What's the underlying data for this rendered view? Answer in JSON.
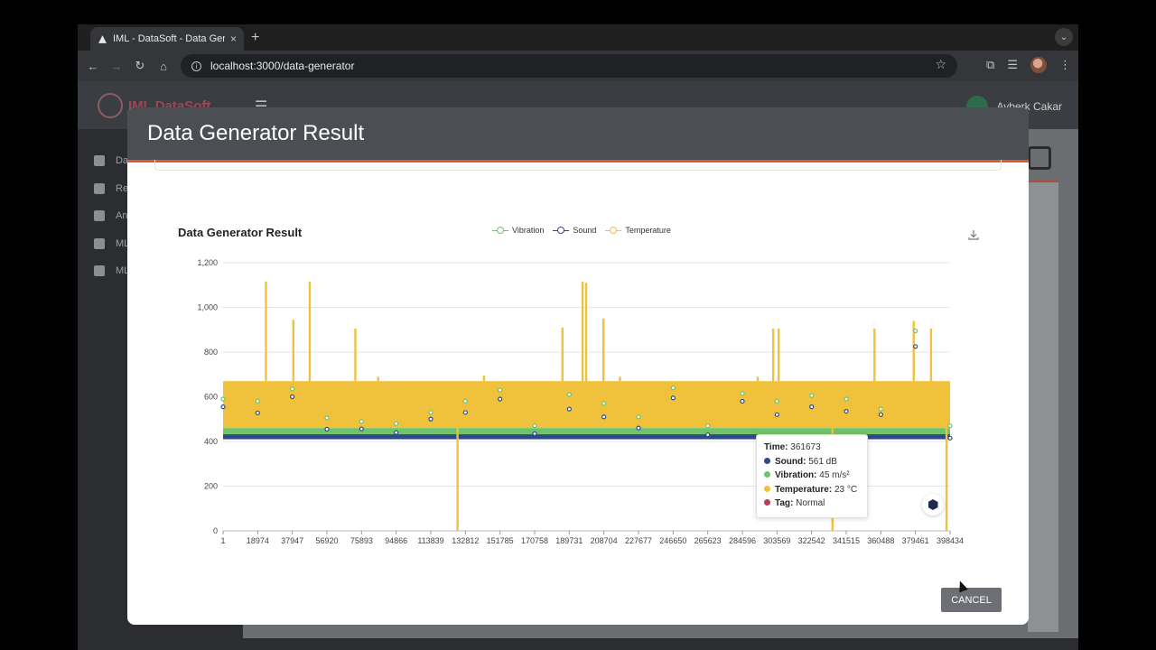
{
  "browser": {
    "tab_title": "IML - DataSoft - Data Generator",
    "tab_close": "×",
    "new_tab": "+",
    "tab_menu": "⌄",
    "url": "localhost:3000/data-generator",
    "back": "←",
    "forward": "→",
    "reload": "↻",
    "home": "⌂",
    "star": "☆",
    "extensions": "⧉",
    "media": "☰",
    "menu": "⋮"
  },
  "app": {
    "logo_text": "IML DataSoft",
    "hamburger": "☰",
    "user_name": "Ayberk Cakar",
    "sidebar": [
      {
        "label": "Da",
        "icon": "chip-icon"
      },
      {
        "label": "Re",
        "icon": "database-icon"
      },
      {
        "label": "An",
        "icon": "bug-icon"
      },
      {
        "label": "ML",
        "icon": "rocket-icon"
      },
      {
        "label": "ML",
        "icon": "check-icon"
      }
    ]
  },
  "modal": {
    "title": "Data Generator Result",
    "cancel_label": "CANCEL"
  },
  "chart_data": {
    "type": "line",
    "title": "Data Generator Result",
    "legend_position": "top-center",
    "legend": [
      {
        "name": "Vibration",
        "color": "#6fc36b"
      },
      {
        "name": "Sound",
        "color": "#2f4a8a"
      },
      {
        "name": "Temperature",
        "color": "#f0c23b"
      }
    ],
    "ylim": [
      0,
      1200
    ],
    "yticks": [
      "0",
      "200",
      "400",
      "600",
      "800",
      "1,000",
      "1,200"
    ],
    "yticks_values": [
      0,
      200,
      400,
      600,
      800,
      1000,
      1200
    ],
    "xlim": [
      1,
      398434
    ],
    "xticks": [
      "1",
      "18974",
      "37947",
      "56920",
      "75893",
      "94866",
      "113839",
      "132812",
      "151785",
      "170758",
      "189731",
      "208704",
      "227677",
      "246650",
      "265623",
      "284596",
      "303569",
      "322542",
      "341515",
      "360488",
      "379461",
      "398434"
    ],
    "grid": true,
    "series": [
      {
        "name": "Sound",
        "color": "#2f4a8a",
        "band": [
          410,
          432
        ],
        "points": [
          [
            1,
            555
          ],
          [
            18974,
            528
          ],
          [
            37947,
            600
          ],
          [
            56920,
            455
          ],
          [
            75893,
            456
          ],
          [
            94866,
            440
          ],
          [
            113839,
            500
          ],
          [
            132812,
            530
          ],
          [
            151785,
            590
          ],
          [
            170758,
            435
          ],
          [
            189731,
            545
          ],
          [
            208704,
            510
          ],
          [
            227677,
            460
          ],
          [
            246650,
            595
          ],
          [
            265623,
            430
          ],
          [
            284596,
            580
          ],
          [
            303569,
            520
          ],
          [
            322542,
            555
          ],
          [
            341515,
            535
          ],
          [
            360488,
            520
          ],
          [
            379461,
            825
          ],
          [
            398434,
            415
          ]
        ]
      },
      {
        "name": "Vibration",
        "color": "#6fc36b",
        "band": [
          430,
          460
        ],
        "points": [
          [
            1,
            590
          ],
          [
            18974,
            580
          ],
          [
            37947,
            635
          ],
          [
            56920,
            505
          ],
          [
            75893,
            490
          ],
          [
            94866,
            480
          ],
          [
            113839,
            530
          ],
          [
            132812,
            580
          ],
          [
            151785,
            630
          ],
          [
            170758,
            470
          ],
          [
            189731,
            610
          ],
          [
            208704,
            570
          ],
          [
            227677,
            510
          ],
          [
            246650,
            640
          ],
          [
            265623,
            470
          ],
          [
            284596,
            615
          ],
          [
            303569,
            580
          ],
          [
            322542,
            605
          ],
          [
            341515,
            590
          ],
          [
            360488,
            545
          ],
          [
            379461,
            895
          ],
          [
            398434,
            470
          ]
        ]
      },
      {
        "name": "Temperature",
        "color": "#f0c23b",
        "band": [
          460,
          670
        ],
        "spikes": [
          [
            23500,
            1115
          ],
          [
            38500,
            945
          ],
          [
            47500,
            1115
          ],
          [
            72500,
            905
          ],
          [
            85000,
            690
          ],
          [
            128500,
            0
          ],
          [
            143000,
            695
          ],
          [
            186000,
            910
          ],
          [
            197000,
            1115
          ],
          [
            199000,
            1110
          ],
          [
            208500,
            950
          ],
          [
            217500,
            690
          ],
          [
            293000,
            690
          ],
          [
            301500,
            905
          ],
          [
            304500,
            905
          ],
          [
            334000,
            0
          ],
          [
            357000,
            905
          ],
          [
            378500,
            940
          ],
          [
            388000,
            905
          ],
          [
            396500,
            0
          ]
        ]
      }
    ]
  },
  "tooltip": {
    "time_label": "Time:",
    "time_value": "361673",
    "rows": [
      {
        "label": "Sound:",
        "value": "561 dB",
        "color": "#2f4a8a"
      },
      {
        "label": "Vibration:",
        "value": "45 m/s²",
        "color": "#6fc36b"
      },
      {
        "label": "Temperature:",
        "value": "23 °C",
        "color": "#f0c23b"
      },
      {
        "label": "Tag:",
        "value": "Normal",
        "color": "#c0395a"
      }
    ]
  }
}
